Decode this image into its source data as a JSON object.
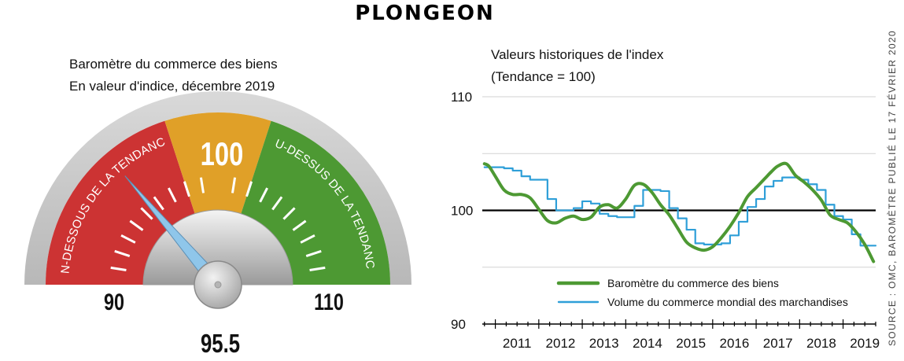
{
  "title": "PLONGEON",
  "source_text": "SOURCE : OMC, BAROMÈTRE PUBLIÉ LE 17 FÉVRIER 2020",
  "gauge": {
    "title_line1": "Baromètre du commerce des biens",
    "title_line2": "En valeur d'indice, décembre 2019",
    "value": 95.5,
    "value_label": "95.5",
    "min_label": "90",
    "mid_label": "100",
    "max_label": "110",
    "below_label": "EN-DESSOUS DE LA TENDANCE",
    "above_label": "AU-DESSUS DE LA TENDANCE",
    "colors": {
      "below": "#cc3333",
      "middle": "#e0a028",
      "above": "#4d9933",
      "needle": "#8fc6ea"
    }
  },
  "chart_data": {
    "type": "line",
    "title": "Valeurs historiques de l'index",
    "subtitle": "(Tendance = 100)",
    "ylim": [
      90,
      110
    ],
    "yticks": [
      "90",
      "100",
      "110"
    ],
    "xlim": [
      2010.7,
      2019.75
    ],
    "xticks": [
      "2011",
      "2012",
      "2013",
      "2014",
      "2015",
      "2016",
      "2017",
      "2018",
      "2019"
    ],
    "reference_line": 100,
    "grid": true,
    "legend_position": "bottom-right",
    "series": [
      {
        "name": "Baromètre du commerce des biens",
        "color": "#4d9933",
        "style": "smooth",
        "x": [
          2010.75,
          2010.85,
          2011.0,
          2011.2,
          2011.4,
          2011.6,
          2011.8,
          2012.0,
          2012.2,
          2012.4,
          2012.6,
          2012.8,
          2013.0,
          2013.2,
          2013.4,
          2013.6,
          2013.8,
          2014.0,
          2014.2,
          2014.4,
          2014.6,
          2014.8,
          2015.0,
          2015.2,
          2015.4,
          2015.6,
          2015.8,
          2016.0,
          2016.2,
          2016.4,
          2016.6,
          2016.8,
          2017.0,
          2017.2,
          2017.35,
          2017.5,
          2017.7,
          2017.9,
          2018.1,
          2018.3,
          2018.5,
          2018.7,
          2018.9,
          2019.1,
          2019.3,
          2019.5,
          2019.7
        ],
        "y": [
          104.1,
          103.9,
          103.0,
          101.8,
          101.4,
          101.4,
          101.1,
          100.1,
          99.1,
          98.9,
          99.3,
          99.5,
          99.2,
          99.4,
          100.3,
          100.5,
          100.2,
          101.0,
          102.2,
          102.3,
          101.6,
          100.5,
          99.6,
          98.4,
          97.2,
          96.7,
          96.5,
          96.8,
          97.6,
          98.6,
          99.8,
          101.2,
          102.0,
          102.8,
          103.4,
          103.9,
          104.1,
          103.1,
          102.5,
          101.8,
          100.9,
          99.6,
          99.2,
          98.9,
          98.1,
          97.0,
          95.5
        ]
      },
      {
        "name": "Volume du commerce mondial des marchandises",
        "color": "#2f9fd8",
        "style": "step",
        "x": [
          2010.75,
          2011.0,
          2011.2,
          2011.4,
          2011.6,
          2011.8,
          2012.0,
          2012.2,
          2012.4,
          2012.6,
          2012.8,
          2013.0,
          2013.2,
          2013.4,
          2013.6,
          2013.8,
          2014.0,
          2014.2,
          2014.4,
          2014.6,
          2014.8,
          2015.0,
          2015.2,
          2015.4,
          2015.6,
          2015.8,
          2016.0,
          2016.2,
          2016.4,
          2016.6,
          2016.8,
          2017.0,
          2017.2,
          2017.4,
          2017.6,
          2017.8,
          2018.0,
          2018.2,
          2018.4,
          2018.6,
          2018.8,
          2019.0,
          2019.2,
          2019.4,
          2019.6
        ],
        "y": [
          103.8,
          103.8,
          103.7,
          103.5,
          103.0,
          102.7,
          102.7,
          101.0,
          100.0,
          100.0,
          100.2,
          100.8,
          100.6,
          99.7,
          99.5,
          99.4,
          99.4,
          100.4,
          101.8,
          101.8,
          101.7,
          100.2,
          99.3,
          98.3,
          97.1,
          97.0,
          97.0,
          97.1,
          97.8,
          99.0,
          100.3,
          101.0,
          102.1,
          102.6,
          102.9,
          102.9,
          102.7,
          102.3,
          101.8,
          100.5,
          99.5,
          99.2,
          97.9,
          96.9,
          96.9
        ]
      }
    ]
  }
}
